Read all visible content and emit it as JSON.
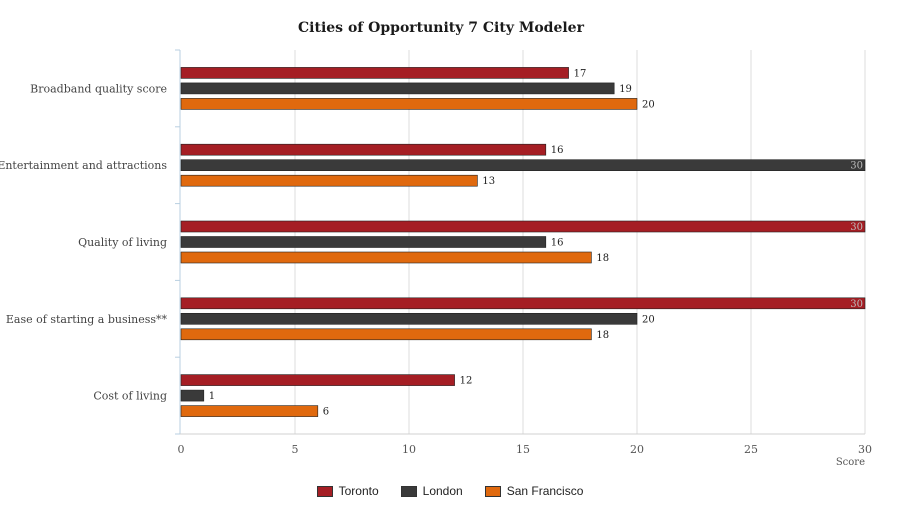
{
  "chart_data": {
    "type": "bar",
    "orientation": "horizontal",
    "title": "Cities of Opportunity 7 City Modeler",
    "categories": [
      "Broadband quality score",
      "Entertainment and attractions",
      "Quality of living",
      "Ease of starting a business**",
      "Cost of living"
    ],
    "series": [
      {
        "name": "Toronto",
        "color": "#a51e24",
        "values": [
          17,
          16,
          30,
          30,
          12
        ]
      },
      {
        "name": "London",
        "color": "#3a3a3a",
        "values": [
          19,
          30,
          16,
          20,
          1
        ]
      },
      {
        "name": "San Francisco",
        "color": "#e0690e",
        "values": [
          20,
          13,
          18,
          18,
          6
        ]
      }
    ],
    "xlabel": "Score",
    "ylabel": "",
    "xlim": [
      0,
      30
    ],
    "xticks": [
      "0",
      "5",
      "10",
      "15",
      "20",
      "25",
      "30"
    ],
    "grid": true,
    "legend_position": "bottom"
  }
}
